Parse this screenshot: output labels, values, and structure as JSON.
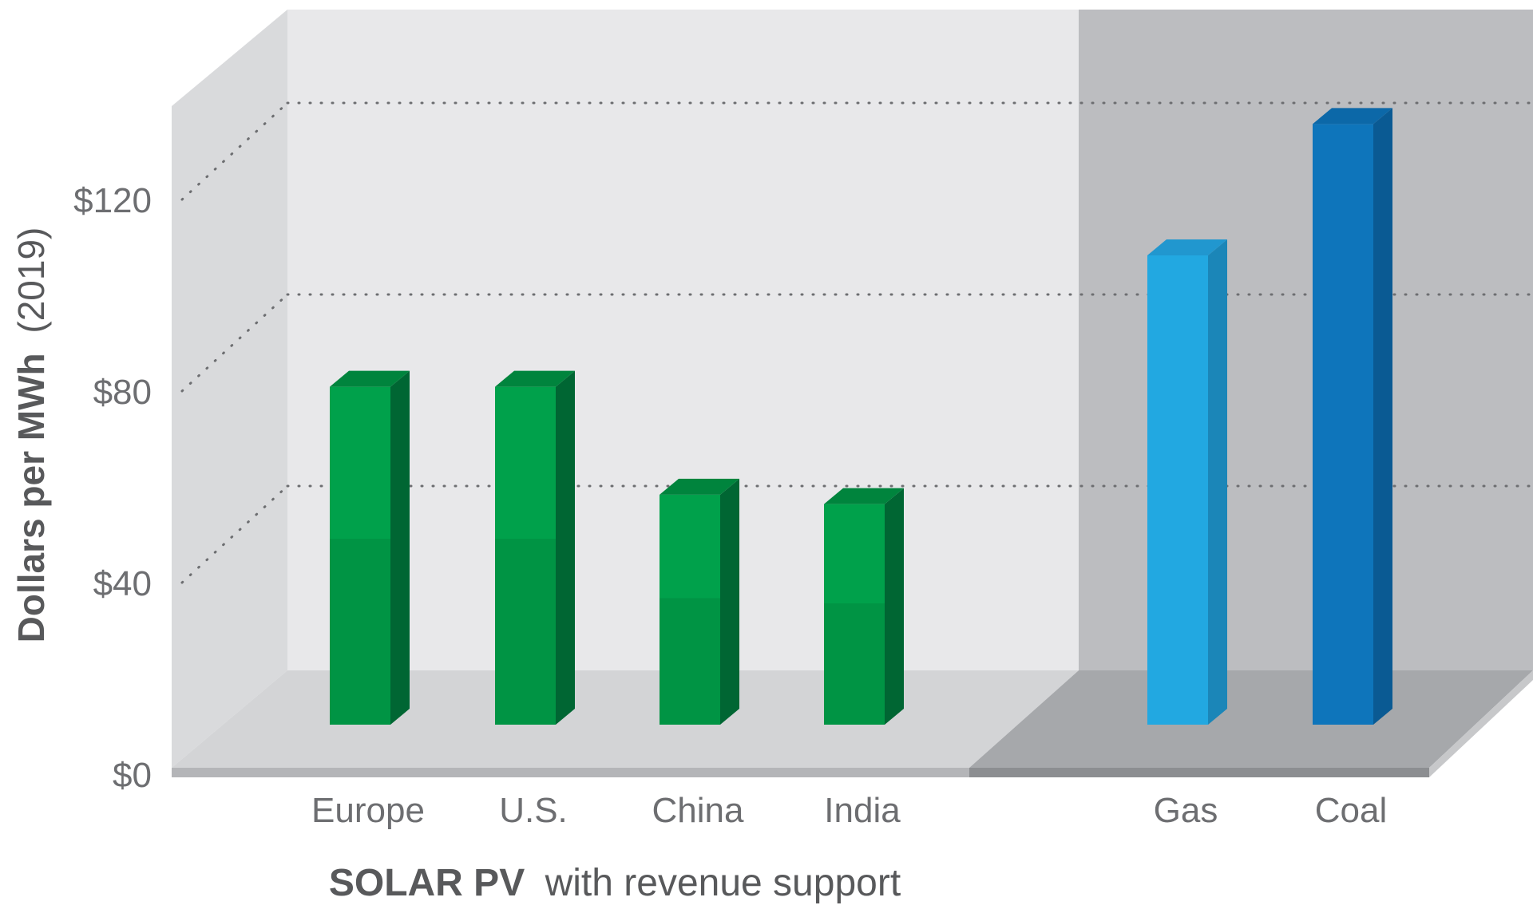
{
  "chart_data": {
    "type": "bar",
    "categories": [
      "Europe",
      "U.S.",
      "China",
      "India",
      "Gas",
      "Coal"
    ],
    "values": [
      80,
      80,
      57,
      55,
      108,
      136
    ],
    "ylabel_bold": "Dollars per MWh",
    "ylabel_normal": "(2019)",
    "yticks": [
      "$0",
      "$40",
      "$80",
      "$120"
    ],
    "ytick_values": [
      0,
      40,
      80,
      120
    ],
    "ylim": [
      0,
      140
    ],
    "grid": true,
    "caption_bold": "SOLAR PV",
    "caption_normal": "with revenue support",
    "colors": {
      "solar_front_top": "#00a14b",
      "solar_front_bottom": "#009444",
      "solar_side": "#006633",
      "solar_top": "#00843d",
      "gas_front": "#22a8e1",
      "gas_side": "#1b86b8",
      "gas_top": "#2197cf",
      "coal_front": "#0e75bb",
      "coal_side": "#0a5a93",
      "coal_top": "#0c68a8",
      "panel_left_back": "#e8e8ea",
      "panel_right_back": "#bcbdc0",
      "floor_left": "#d3d4d6",
      "floor_right": "#a6a8ab"
    }
  }
}
